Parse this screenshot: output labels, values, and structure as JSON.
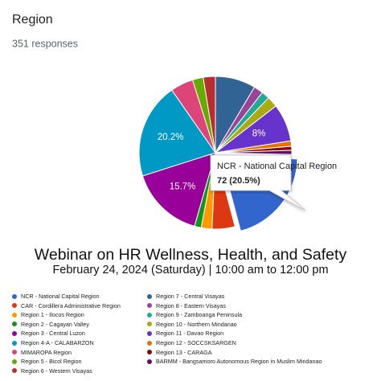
{
  "header": {
    "title": "Region",
    "responses": "351 responses"
  },
  "chart_data": {
    "type": "pie",
    "categories": [
      "NCR - National Capital Region",
      "CAR - Cordillera Administrative Region",
      "Region 1 - Ilocos Region",
      "Region 2 - Cagayan Valley",
      "Region 3 - Central Luzon",
      "Region 4-A - CALABARZON",
      "MIMAROPA Region",
      "Region 5 - Bicol Region",
      "Region 6 - Western Visayas",
      "Region 7 - Central Visayas",
      "Region 8 - Eastern Visayas",
      "Region 9 - Zamboanga Peninsula",
      "Region 10 - Northern Mindanao",
      "Region 11 - Davao Region",
      "Region 12 - SOCCSKSARGEN",
      "Region 13 - CARAGA",
      "BARMM - Bangsamoro Autonomous Region in Muslim Mindanao"
    ],
    "values": [
      72,
      17,
      8,
      5,
      55,
      71,
      17,
      8,
      9,
      30,
      7,
      6,
      8,
      28,
      4,
      3,
      3
    ],
    "value_labels": [
      "72 (20.5%)",
      null,
      null,
      null,
      "15.7%",
      "20.2%",
      null,
      null,
      null,
      null,
      null,
      null,
      null,
      "8%",
      null,
      null,
      null
    ],
    "colors": [
      "#3366cc",
      "#dc3912",
      "#ff9900",
      "#109618",
      "#990099",
      "#0099c6",
      "#dd4477",
      "#66aa00",
      "#b82e2e",
      "#316395",
      "#994499",
      "#22aa99",
      "#aaaa11",
      "#6633cc",
      "#e67300",
      "#8b0707",
      "#651067"
    ]
  },
  "banner": {
    "title": "Webinar on HR Wellness, Health, and Safety",
    "subtitle": "February 24, 2024 (Saturday) | 10:00 am to 12:00 pm"
  }
}
